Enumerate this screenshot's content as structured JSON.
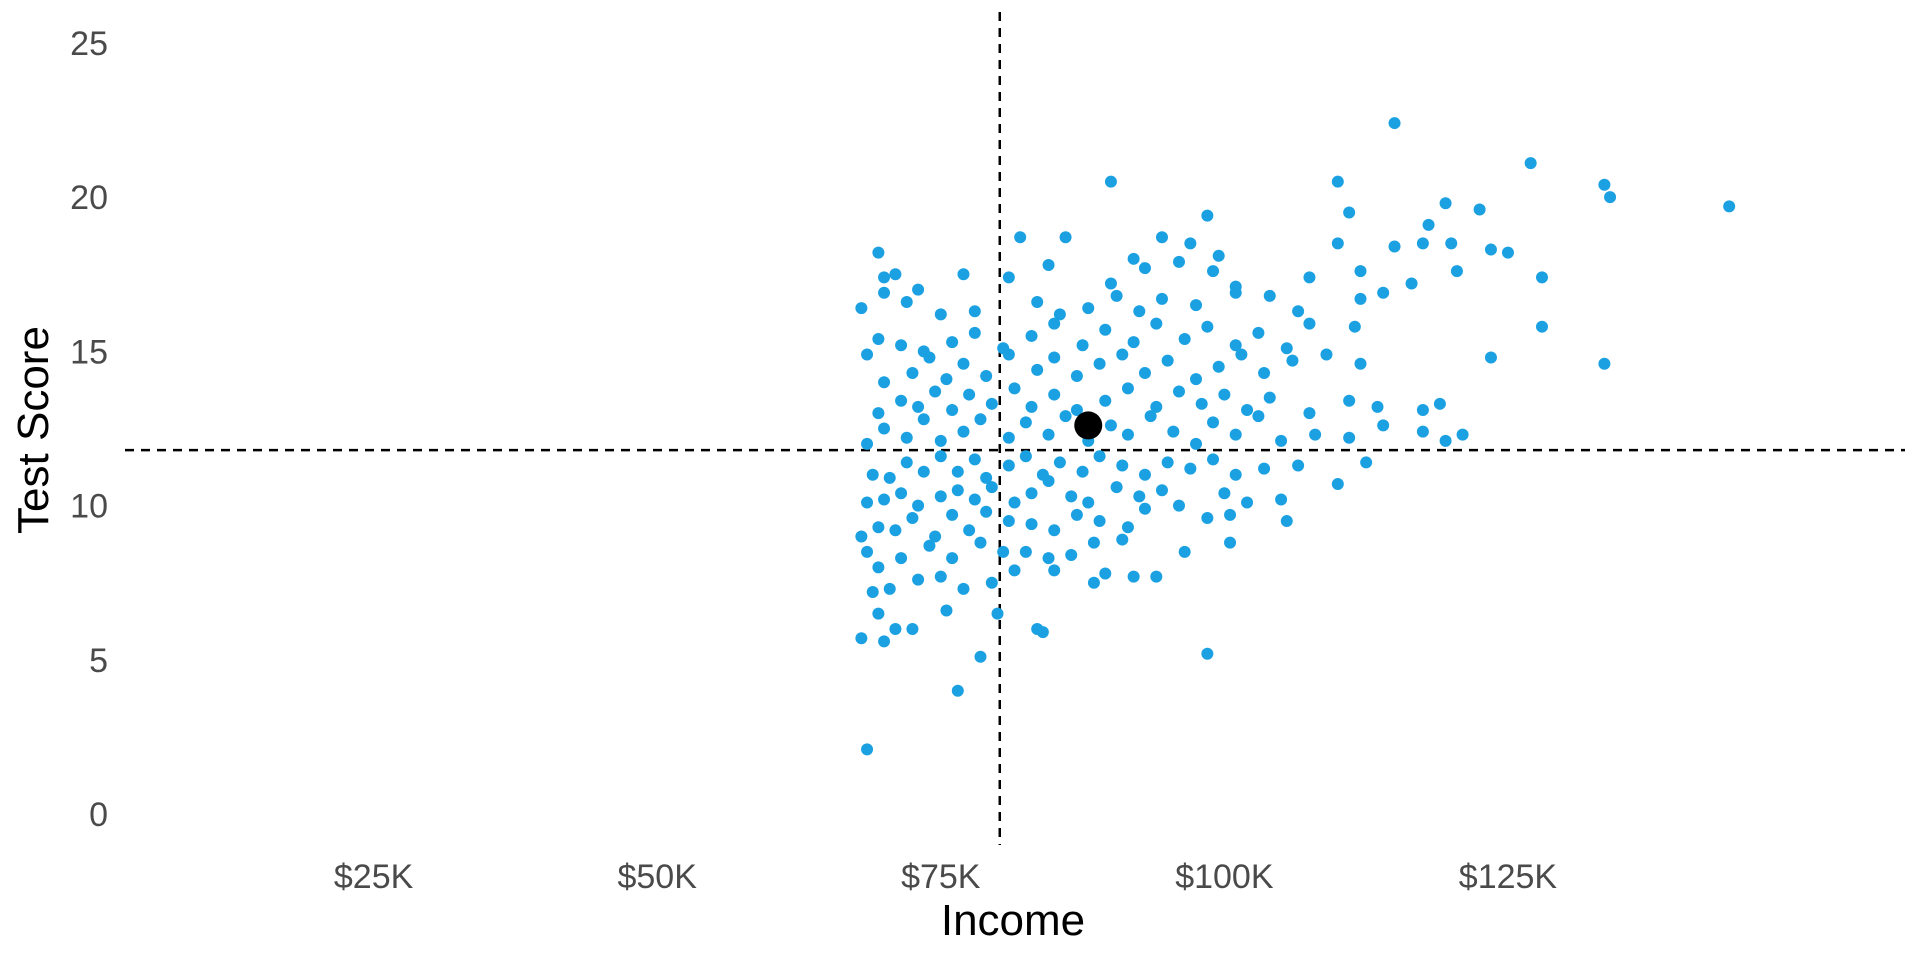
{
  "chart_data": {
    "type": "scatter",
    "title": "",
    "xlabel": "Income",
    "ylabel": "Test Score",
    "xlim": [
      0,
      160000
    ],
    "ylim": [
      -1,
      26
    ],
    "x_ticks": [
      25000,
      50000,
      75000,
      100000,
      125000
    ],
    "x_tick_labels": [
      "$25K",
      "$50K",
      "$75K",
      "$100K",
      "$125K"
    ],
    "y_ticks": [
      0,
      5,
      10,
      15,
      20,
      25
    ],
    "y_tick_labels": [
      "0",
      "5",
      "10",
      "15",
      "20",
      "25"
    ],
    "grid": false,
    "legend": "none",
    "point_color": "#1ba1e2",
    "mean_color": "#000000",
    "reference_lines": {
      "x": 80200,
      "y": 11.8
    },
    "mean_point": {
      "x": 88000,
      "y": 12.6
    },
    "points": [
      [
        68500,
        2.1
      ],
      [
        76500,
        4.0
      ],
      [
        78500,
        5.1
      ],
      [
        68000,
        5.7
      ],
      [
        70000,
        5.6
      ],
      [
        71000,
        6.0
      ],
      [
        69500,
        6.5
      ],
      [
        72500,
        6.0
      ],
      [
        75500,
        6.6
      ],
      [
        80000,
        6.5
      ],
      [
        83500,
        6.0
      ],
      [
        84000,
        5.9
      ],
      [
        98500,
        5.2
      ],
      [
        69000,
        7.2
      ],
      [
        70500,
        7.3
      ],
      [
        73000,
        7.6
      ],
      [
        75000,
        7.7
      ],
      [
        77000,
        7.3
      ],
      [
        79500,
        7.5
      ],
      [
        81500,
        7.9
      ],
      [
        85000,
        7.9
      ],
      [
        88500,
        7.5
      ],
      [
        92000,
        7.7
      ],
      [
        94000,
        7.7
      ],
      [
        89500,
        7.8
      ],
      [
        68500,
        8.5
      ],
      [
        69500,
        8.0
      ],
      [
        71500,
        8.3
      ],
      [
        74000,
        8.7
      ],
      [
        76000,
        8.3
      ],
      [
        78500,
        8.8
      ],
      [
        80500,
        8.5
      ],
      [
        82500,
        8.5
      ],
      [
        84500,
        8.3
      ],
      [
        86500,
        8.4
      ],
      [
        88500,
        8.8
      ],
      [
        91000,
        8.9
      ],
      [
        96500,
        8.5
      ],
      [
        100500,
        8.8
      ],
      [
        68000,
        9.0
      ],
      [
        69500,
        9.3
      ],
      [
        71000,
        9.2
      ],
      [
        72500,
        9.6
      ],
      [
        74500,
        9.0
      ],
      [
        76000,
        9.7
      ],
      [
        77500,
        9.2
      ],
      [
        79000,
        9.8
      ],
      [
        81000,
        9.5
      ],
      [
        83000,
        9.4
      ],
      [
        85000,
        9.2
      ],
      [
        87000,
        9.7
      ],
      [
        89000,
        9.5
      ],
      [
        91500,
        9.3
      ],
      [
        93000,
        9.9
      ],
      [
        98500,
        9.6
      ],
      [
        100500,
        9.7
      ],
      [
        105500,
        9.5
      ],
      [
        68500,
        10.1
      ],
      [
        70000,
        10.2
      ],
      [
        71500,
        10.4
      ],
      [
        73000,
        10.0
      ],
      [
        75000,
        10.3
      ],
      [
        76500,
        10.5
      ],
      [
        78000,
        10.2
      ],
      [
        79500,
        10.6
      ],
      [
        81500,
        10.1
      ],
      [
        83000,
        10.4
      ],
      [
        84500,
        10.8
      ],
      [
        86500,
        10.3
      ],
      [
        88000,
        10.1
      ],
      [
        90500,
        10.6
      ],
      [
        92500,
        10.3
      ],
      [
        94500,
        10.5
      ],
      [
        96000,
        10.0
      ],
      [
        100000,
        10.4
      ],
      [
        102000,
        10.1
      ],
      [
        105000,
        10.2
      ],
      [
        110000,
        10.7
      ],
      [
        69000,
        11.0
      ],
      [
        70500,
        10.9
      ],
      [
        72000,
        11.4
      ],
      [
        73500,
        11.1
      ],
      [
        75000,
        11.6
      ],
      [
        76500,
        11.1
      ],
      [
        78000,
        11.5
      ],
      [
        79000,
        10.9
      ],
      [
        81000,
        11.3
      ],
      [
        82500,
        11.6
      ],
      [
        84000,
        11.0
      ],
      [
        85500,
        11.4
      ],
      [
        87500,
        11.1
      ],
      [
        89000,
        11.6
      ],
      [
        91000,
        11.3
      ],
      [
        93000,
        11.0
      ],
      [
        95000,
        11.4
      ],
      [
        97000,
        11.2
      ],
      [
        99000,
        11.5
      ],
      [
        101000,
        11.0
      ],
      [
        103500,
        11.2
      ],
      [
        106500,
        11.3
      ],
      [
        112500,
        11.4
      ],
      [
        68500,
        12.0
      ],
      [
        70000,
        12.5
      ],
      [
        72000,
        12.2
      ],
      [
        73500,
        12.8
      ],
      [
        75000,
        12.1
      ],
      [
        77000,
        12.4
      ],
      [
        78500,
        12.8
      ],
      [
        81000,
        12.2
      ],
      [
        82500,
        12.7
      ],
      [
        84500,
        12.3
      ],
      [
        86000,
        12.9
      ],
      [
        88000,
        12.1
      ],
      [
        90000,
        12.6
      ],
      [
        91500,
        12.3
      ],
      [
        93500,
        12.9
      ],
      [
        95500,
        12.4
      ],
      [
        97500,
        12.0
      ],
      [
        99000,
        12.7
      ],
      [
        101000,
        12.3
      ],
      [
        103000,
        12.9
      ],
      [
        105000,
        12.1
      ],
      [
        108000,
        12.3
      ],
      [
        111000,
        12.2
      ],
      [
        114000,
        12.6
      ],
      [
        117500,
        12.4
      ],
      [
        119500,
        12.1
      ],
      [
        121000,
        12.3
      ],
      [
        69500,
        13.0
      ],
      [
        71500,
        13.4
      ],
      [
        73000,
        13.2
      ],
      [
        74500,
        13.7
      ],
      [
        76000,
        13.1
      ],
      [
        77500,
        13.6
      ],
      [
        79500,
        13.3
      ],
      [
        81500,
        13.8
      ],
      [
        83000,
        13.2
      ],
      [
        85000,
        13.6
      ],
      [
        87000,
        13.1
      ],
      [
        89500,
        13.4
      ],
      [
        91500,
        13.8
      ],
      [
        94000,
        13.2
      ],
      [
        96000,
        13.7
      ],
      [
        98000,
        13.3
      ],
      [
        100000,
        13.6
      ],
      [
        102000,
        13.1
      ],
      [
        104000,
        13.5
      ],
      [
        107500,
        13.0
      ],
      [
        111000,
        13.4
      ],
      [
        113500,
        13.2
      ],
      [
        117500,
        13.1
      ],
      [
        119000,
        13.3
      ],
      [
        70000,
        14.0
      ],
      [
        72500,
        14.3
      ],
      [
        74000,
        14.8
      ],
      [
        75500,
        14.1
      ],
      [
        77000,
        14.6
      ],
      [
        79000,
        14.2
      ],
      [
        81000,
        14.9
      ],
      [
        83500,
        14.4
      ],
      [
        85000,
        14.8
      ],
      [
        87000,
        14.2
      ],
      [
        89000,
        14.6
      ],
      [
        91000,
        14.9
      ],
      [
        93000,
        14.3
      ],
      [
        95000,
        14.7
      ],
      [
        97500,
        14.1
      ],
      [
        99500,
        14.5
      ],
      [
        101500,
        14.9
      ],
      [
        103500,
        14.3
      ],
      [
        106000,
        14.7
      ],
      [
        109000,
        14.9
      ],
      [
        112000,
        14.6
      ],
      [
        123500,
        14.8
      ],
      [
        133500,
        14.6
      ],
      [
        68500,
        14.9
      ],
      [
        69500,
        15.4
      ],
      [
        71500,
        15.2
      ],
      [
        73500,
        15.0
      ],
      [
        76000,
        15.3
      ],
      [
        78000,
        15.6
      ],
      [
        80500,
        15.1
      ],
      [
        83000,
        15.5
      ],
      [
        85000,
        15.9
      ],
      [
        87500,
        15.2
      ],
      [
        89500,
        15.7
      ],
      [
        92000,
        15.3
      ],
      [
        94000,
        15.9
      ],
      [
        96500,
        15.4
      ],
      [
        98500,
        15.8
      ],
      [
        101000,
        15.2
      ],
      [
        103000,
        15.6
      ],
      [
        105500,
        15.1
      ],
      [
        107500,
        15.9
      ],
      [
        111500,
        15.8
      ],
      [
        128000,
        15.8
      ],
      [
        68000,
        16.4
      ],
      [
        70000,
        16.9
      ],
      [
        72000,
        16.6
      ],
      [
        75000,
        16.2
      ],
      [
        78000,
        16.3
      ],
      [
        83500,
        16.6
      ],
      [
        85500,
        16.2
      ],
      [
        88000,
        16.4
      ],
      [
        90500,
        16.8
      ],
      [
        92500,
        16.3
      ],
      [
        94500,
        16.7
      ],
      [
        97500,
        16.5
      ],
      [
        101000,
        16.9
      ],
      [
        104000,
        16.8
      ],
      [
        106500,
        16.3
      ],
      [
        112000,
        16.7
      ],
      [
        114000,
        16.9
      ],
      [
        70000,
        17.4
      ],
      [
        71000,
        17.5
      ],
      [
        73000,
        17.0
      ],
      [
        77000,
        17.5
      ],
      [
        81000,
        17.4
      ],
      [
        84500,
        17.8
      ],
      [
        90000,
        17.2
      ],
      [
        93000,
        17.7
      ],
      [
        96000,
        17.9
      ],
      [
        99000,
        17.6
      ],
      [
        101000,
        17.1
      ],
      [
        107500,
        17.4
      ],
      [
        112000,
        17.6
      ],
      [
        116500,
        17.2
      ],
      [
        120500,
        17.6
      ],
      [
        128000,
        17.4
      ],
      [
        69500,
        18.2
      ],
      [
        82000,
        18.7
      ],
      [
        86000,
        18.7
      ],
      [
        92000,
        18.0
      ],
      [
        94500,
        18.7
      ],
      [
        97000,
        18.5
      ],
      [
        99500,
        18.1
      ],
      [
        110000,
        18.5
      ],
      [
        115000,
        18.4
      ],
      [
        117500,
        18.5
      ],
      [
        120000,
        18.5
      ],
      [
        123500,
        18.3
      ],
      [
        125000,
        18.2
      ],
      [
        98500,
        19.4
      ],
      [
        111000,
        19.5
      ],
      [
        118000,
        19.1
      ],
      [
        119500,
        19.8
      ],
      [
        122500,
        19.6
      ],
      [
        144500,
        19.7
      ],
      [
        90000,
        20.5
      ],
      [
        110000,
        20.5
      ],
      [
        133500,
        20.4
      ],
      [
        134000,
        20.0
      ],
      [
        127000,
        21.1
      ],
      [
        115000,
        22.4
      ]
    ]
  }
}
